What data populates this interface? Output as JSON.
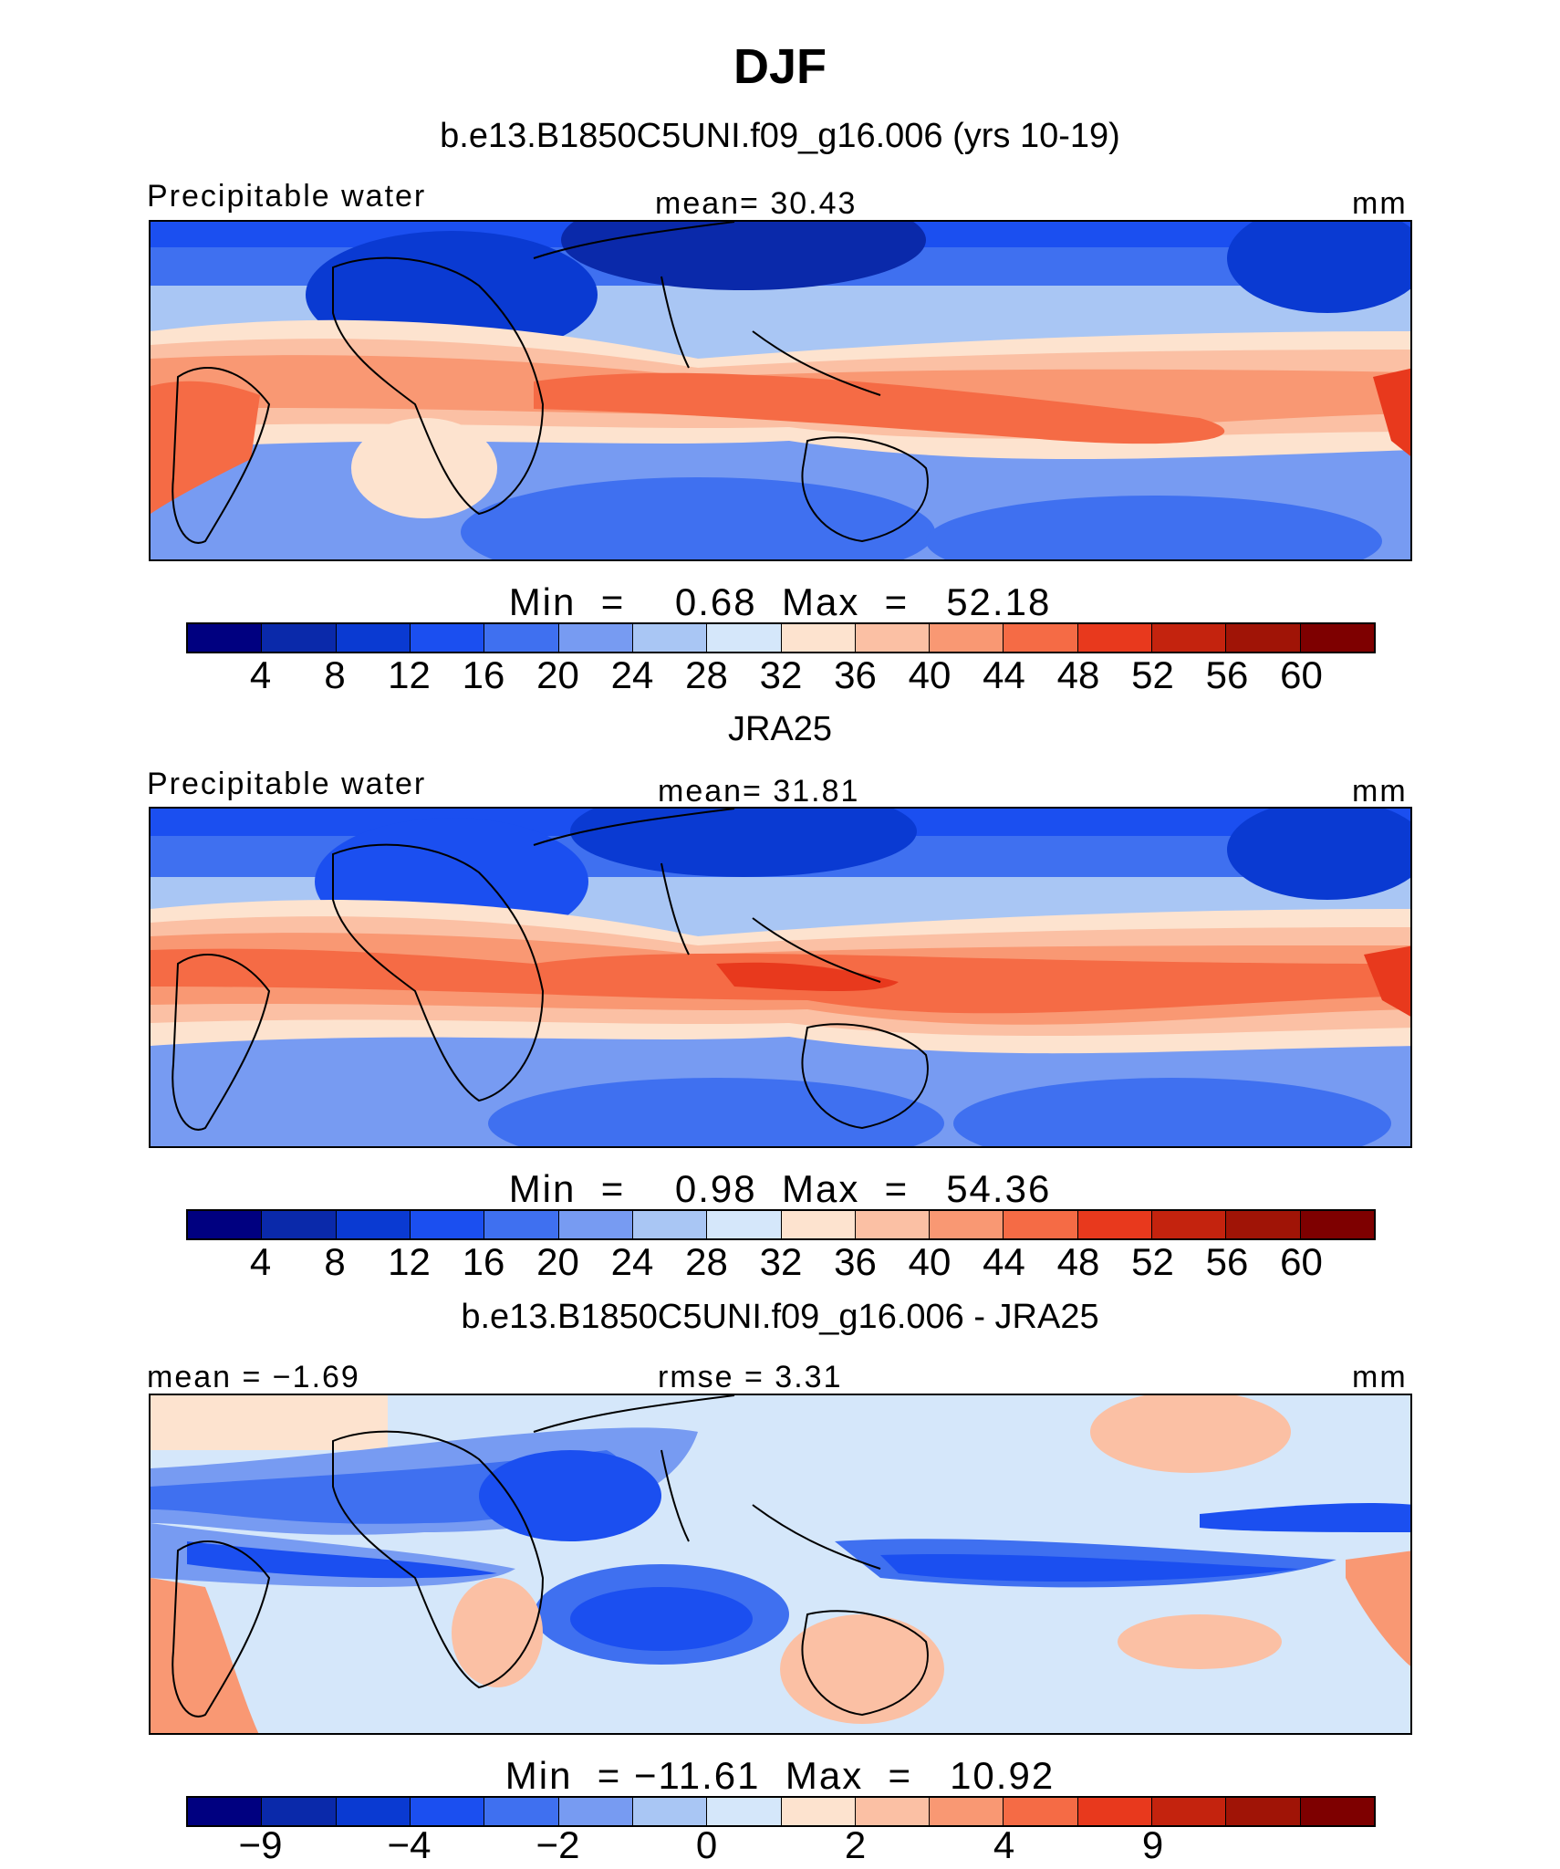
{
  "figure": {
    "title": "DJF",
    "colors": {
      "precip_scale": [
        "#000080",
        "#0a29aa",
        "#0a3ad2",
        "#1b4ff0",
        "#3f70f0",
        "#779bf2",
        "#a9c6f4",
        "#d5e7fa",
        "#fde3cf",
        "#fbc0a4",
        "#f99873",
        "#f56b45",
        "#e8391d",
        "#c4230e",
        "#a01406",
        "#7e0000"
      ],
      "diff_scale": [
        "#000080",
        "#0a29aa",
        "#0a3ad2",
        "#1b4ff0",
        "#3f70f0",
        "#779bf2",
        "#a9c6f4",
        "#d5e7fa",
        "#fde3cf",
        "#fbc0a4",
        "#f99873",
        "#f56b45",
        "#e8391d",
        "#c4230e",
        "#a01406",
        "#7e0000"
      ]
    },
    "panels": [
      {
        "title": "b.e13.B1850C5UNI.f09_g16.006 (yrs 10-19)",
        "left_label": "Precipitable water",
        "center_label": "mean=   30.43",
        "right_label": "mm",
        "minmax": "Min  =    0.68  Max  =   52.18",
        "ticks": [
          "4",
          "8",
          "12",
          "16",
          "20",
          "24",
          "28",
          "32",
          "36",
          "40",
          "44",
          "48",
          "52",
          "56",
          "60"
        ],
        "scale": "precip_scale"
      },
      {
        "title": "JRA25",
        "left_label": "Precipitable water",
        "center_label": "mean=   31.81",
        "right_label": "mm",
        "minmax": "Min  =    0.98  Max  =   54.36",
        "ticks": [
          "4",
          "8",
          "12",
          "16",
          "20",
          "24",
          "28",
          "32",
          "36",
          "40",
          "44",
          "48",
          "52",
          "56",
          "60"
        ],
        "scale": "precip_scale"
      },
      {
        "title": "b.e13.B1850C5UNI.f09_g16.006 - JRA25",
        "left_label": "mean =  −1.69",
        "center_label": "rmse =   3.31",
        "right_label": "mm",
        "minmax": "Min  = −11.61  Max  =   10.92",
        "ticks": [
          "−9",
          "",
          "−4",
          "",
          "−2",
          "",
          "0",
          "",
          "2",
          "",
          "4",
          "",
          "9",
          "",
          ""
        ],
        "scale": "diff_scale"
      }
    ]
  }
}
